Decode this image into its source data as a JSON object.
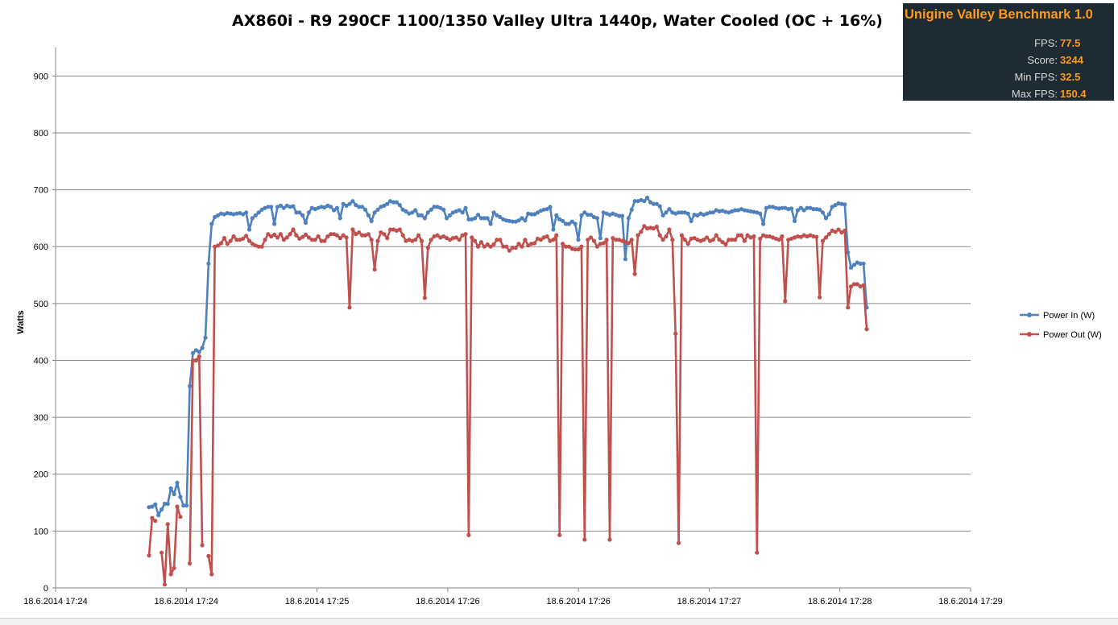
{
  "chart_data": {
    "type": "line",
    "title": "AX860i - R9 290CF 1100/1350 Valley Ultra 1440p, Water Cooled (OC + 16%)",
    "ylabel": "Watts",
    "ylim": [
      0,
      950
    ],
    "yticks": [
      0,
      100,
      200,
      300,
      400,
      500,
      600,
      700,
      800,
      900
    ],
    "xticks": [
      "18.6.2014 17:24",
      "18.6.2014 17:24",
      "18.6.2014 17:25",
      "18.6.2014 17:26",
      "18.6.2014 17:26",
      "18.6.2014 17:27",
      "18.6.2014 17:28",
      "18.6.2014 17:29"
    ],
    "grid": "horizontal",
    "legend_position": "right",
    "series": [
      {
        "name": "Power In (W)",
        "color": "#4f81bd",
        "values": [
          142,
          143,
          147,
          128,
          138,
          148,
          148,
          175,
          165,
          185,
          160,
          145,
          145,
          355,
          413,
          418,
          415,
          422,
          440,
          570,
          640,
          652,
          655,
          658,
          657,
          659,
          658,
          657,
          658,
          659,
          657,
          660,
          630,
          650,
          655,
          660,
          665,
          668,
          670,
          670,
          640,
          670,
          672,
          668,
          672,
          670,
          671,
          660,
          660,
          655,
          642,
          660,
          668,
          666,
          668,
          670,
          669,
          672,
          670,
          664,
          668,
          650,
          675,
          672,
          675,
          680,
          673,
          670,
          670,
          665,
          655,
          645,
          660,
          665,
          670,
          672,
          675,
          680,
          678,
          678,
          673,
          665,
          662,
          658,
          660,
          664,
          655,
          655,
          650,
          660,
          665,
          670,
          670,
          668,
          665,
          650,
          655,
          660,
          662,
          664,
          660,
          668,
          648,
          648,
          650,
          656,
          650,
          650,
          650,
          640,
          660,
          655,
          652,
          648,
          646,
          645,
          644,
          644,
          646,
          650,
          646,
          658,
          657,
          657,
          660,
          663,
          665,
          666,
          670,
          630,
          655,
          648,
          645,
          640,
          640,
          644,
          640,
          612,
          655,
          660,
          656,
          656,
          652,
          650,
          615,
          660,
          658,
          656,
          658,
          656,
          654,
          654,
          578,
          650,
          665,
          680,
          680,
          682,
          680,
          686,
          678,
          675,
          675,
          671,
          655,
          660,
          666,
          660,
          658,
          660,
          660,
          660,
          658,
          645,
          656,
          655,
          658,
          656,
          658,
          660,
          660,
          664,
          662,
          663,
          661,
          660,
          662,
          664,
          664,
          666,
          664,
          663,
          662,
          661,
          660,
          658,
          640,
          668,
          670,
          670,
          668,
          667,
          668,
          668,
          666,
          667,
          645,
          664,
          668,
          664,
          668,
          668,
          666,
          666,
          665,
          660,
          650,
          657,
          670,
          673,
          676,
          675,
          674,
          590,
          563,
          568,
          572,
          570,
          570,
          493
        ]
      },
      {
        "name": "Power Out (W)",
        "color": "#c0504d",
        "values": [
          57,
          123,
          118,
          null,
          62,
          6,
          112,
          24,
          35,
          143,
          125,
          null,
          null,
          43,
          400,
          400,
          407,
          75,
          null,
          56,
          24,
          600,
          602,
          606,
          615,
          605,
          610,
          618,
          612,
          612,
          614,
          619,
          610,
          605,
          602,
          600,
          600,
          612,
          622,
          618,
          621,
          616,
          622,
          612,
          616,
          622,
          630,
          620,
          614,
          617,
          621,
          616,
          612,
          612,
          618,
          610,
          610,
          618,
          622,
          622,
          620,
          615,
          620,
          616,
          493,
          630,
          622,
          625,
          620,
          620,
          622,
          612,
          560,
          610,
          625,
          622,
          615,
          630,
          630,
          628,
          630,
          620,
          610,
          612,
          610,
          612,
          620,
          610,
          510,
          598,
          612,
          618,
          620,
          616,
          618,
          615,
          612,
          615,
          616,
          612,
          620,
          622,
          93,
          616,
          610,
          600,
          608,
          600,
          604,
          600,
          604,
          612,
          612,
          600,
          600,
          593,
          598,
          598,
          605,
          600,
          612,
          602,
          605,
          606,
          614,
          612,
          616,
          618,
          610,
          612,
          620,
          93,
          605,
          600,
          600,
          596,
          595,
          595,
          600,
          85,
          612,
          616,
          610,
          600,
          605,
          606,
          612,
          85,
          615,
          612,
          612,
          610,
          608,
          606,
          612,
          552,
          620,
          626,
          636,
          632,
          633,
          632,
          635,
          620,
          612,
          618,
          630,
          612,
          447,
          79,
          620,
          612,
          605,
          614,
          615,
          612,
          610,
          612,
          616,
          610,
          612,
          620,
          612,
          608,
          604,
          612,
          612,
          612,
          620,
          620,
          610,
          620,
          616,
          618,
          62,
          614,
          620,
          618,
          618,
          616,
          614,
          612,
          618,
          504,
          612,
          614,
          616,
          618,
          617,
          620,
          618,
          620,
          618,
          617,
          511,
          610,
          616,
          622,
          628,
          626,
          630,
          625,
          628,
          493,
          530,
          534,
          534,
          530,
          532,
          455
        ]
      }
    ]
  },
  "overlay": {
    "title": "Unigine Valley Benchmark 1.0",
    "rows": [
      {
        "label": "FPS:",
        "value": "77.5"
      },
      {
        "label": "Score:",
        "value": "3244"
      },
      {
        "label": "Min FPS:",
        "value": "32.5"
      },
      {
        "label": "Max FPS:",
        "value": "150.4"
      }
    ]
  }
}
